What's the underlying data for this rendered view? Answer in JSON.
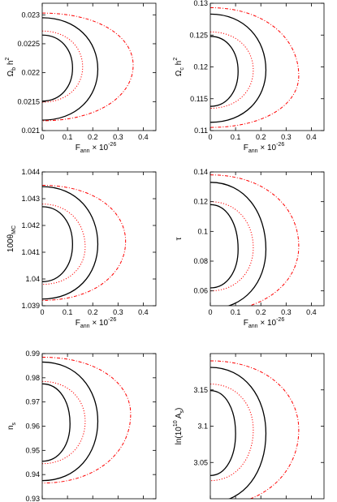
{
  "chart_data": [
    {
      "type": "contour",
      "ylabel": "Ω_b h^2",
      "ylabel_parts": {
        "base": "Ω",
        "sub": "b",
        "mid": " h",
        "sup": "2"
      },
      "xlabel_parts": {
        "base": "F",
        "sub": "ann",
        "mid": " × 10",
        "sup": "-26"
      },
      "xlim": [
        0,
        0.45
      ],
      "ylim": [
        0.021,
        0.0232
      ],
      "xticks": [
        "0",
        "0.1",
        "0.2",
        "0.3",
        "0.4"
      ],
      "yticks": [
        "0.021",
        "0.0215",
        "0.022",
        "0.0225",
        "0.023"
      ],
      "series": [
        {
          "style": "solid",
          "color": "#000000",
          "y_top": 0.02265,
          "y_bot": 0.02151,
          "x_max": 0.12,
          "y_at_max": 0.02208
        },
        {
          "style": "solid",
          "color": "#000000",
          "y_top": 0.02295,
          "y_bot": 0.02118,
          "x_max": 0.22,
          "y_at_max": 0.02206
        },
        {
          "style": "dotted",
          "color": "#ff0000",
          "y_top": 0.02272,
          "y_bot": 0.02149,
          "x_max": 0.16,
          "y_at_max": 0.0221
        },
        {
          "style": "dashdot",
          "color": "#ff0000",
          "y_top": 0.02303,
          "y_bot": 0.02117,
          "x_max": 0.36,
          "y_at_max": 0.02213
        }
      ]
    },
    {
      "type": "contour",
      "ylabel": "Ω_c h^2",
      "ylabel_parts": {
        "base": "Ω",
        "sub": "c",
        "mid": " h",
        "sup": "2"
      },
      "xlabel_parts": {
        "base": "F",
        "sub": "ann",
        "mid": " × 10",
        "sup": "-26"
      },
      "xlim": [
        0,
        0.45
      ],
      "ylim": [
        0.11,
        0.13
      ],
      "xticks": [
        "0",
        "0.1",
        "0.2",
        "0.3",
        "0.4"
      ],
      "yticks": [
        "0.11",
        "0.115",
        "0.12",
        "0.125",
        "0.13"
      ],
      "series": [
        {
          "style": "solid",
          "color": "#000000",
          "y_top": 0.1248,
          "y_bot": 0.1138,
          "x_max": 0.11,
          "y_at_max": 0.1193
        },
        {
          "style": "solid",
          "color": "#000000",
          "y_top": 0.1283,
          "y_bot": 0.1113,
          "x_max": 0.22,
          "y_at_max": 0.1195
        },
        {
          "style": "dotted",
          "color": "#ff0000",
          "y_top": 0.1255,
          "y_bot": 0.1135,
          "x_max": 0.17,
          "y_at_max": 0.1195
        },
        {
          "style": "dashdot",
          "color": "#ff0000",
          "y_top": 0.1293,
          "y_bot": 0.1105,
          "x_max": 0.35,
          "y_at_max": 0.1186
        }
      ]
    },
    {
      "type": "contour",
      "ylabel": "100θ_MC",
      "ylabel_parts": {
        "base": "100θ",
        "sub": "MC",
        "mid": "",
        "sup": ""
      },
      "xlabel_parts": {
        "base": "F",
        "sub": "ann",
        "mid": " × 10",
        "sup": "-26"
      },
      "xlim": [
        0,
        0.45
      ],
      "ylim": [
        1.039,
        1.044
      ],
      "xticks": [
        "0",
        "0.1",
        "0.2",
        "0.3",
        "0.4"
      ],
      "yticks": [
        "1.039",
        "1.04",
        "1.041",
        "1.042",
        "1.043",
        "1.044"
      ],
      "series": [
        {
          "style": "solid",
          "color": "#000000",
          "y_top": 1.0427,
          "y_bot": 1.0399,
          "x_max": 0.12,
          "y_at_max": 1.0413
        },
        {
          "style": "solid",
          "color": "#000000",
          "y_top": 1.04345,
          "y_bot": 1.03925,
          "x_max": 0.22,
          "y_at_max": 1.0413
        },
        {
          "style": "dotted",
          "color": "#ff0000",
          "y_top": 1.0428,
          "y_bot": 1.0398,
          "x_max": 0.17,
          "y_at_max": 1.0412
        },
        {
          "style": "dashdot",
          "color": "#ff0000",
          "y_top": 1.0435,
          "y_bot": 1.0392,
          "x_max": 0.33,
          "y_at_max": 1.0414
        }
      ]
    },
    {
      "type": "contour",
      "ylabel": "τ",
      "ylabel_parts": {
        "base": "τ",
        "sub": "",
        "mid": "",
        "sup": ""
      },
      "xlabel_parts": {
        "base": "F",
        "sub": "ann",
        "mid": " × 10",
        "sup": "-26"
      },
      "xlim": [
        0,
        0.45
      ],
      "ylim": [
        0.05,
        0.14
      ],
      "xticks": [
        "0",
        "0.1",
        "0.2",
        "0.3",
        "0.4"
      ],
      "yticks": [
        "0.06",
        "0.08",
        "0.1",
        "0.12",
        "0.14"
      ],
      "series": [
        {
          "style": "solid",
          "color": "#000000",
          "y_top": 0.118,
          "y_bot": 0.062,
          "x_max": 0.11,
          "y_at_max": 0.088
        },
        {
          "style": "solid",
          "color": "#000000",
          "y_top": 0.133,
          "y_bot": 0.048,
          "x_max": 0.22,
          "y_at_max": 0.088
        },
        {
          "style": "dotted",
          "color": "#ff0000",
          "y_top": 0.12,
          "y_bot": 0.06,
          "x_max": 0.17,
          "y_at_max": 0.089
        },
        {
          "style": "dashdot",
          "color": "#ff0000",
          "y_top": 0.138,
          "y_bot": 0.046,
          "x_max": 0.35,
          "y_at_max": 0.09
        }
      ]
    },
    {
      "type": "contour",
      "ylabel": "n_s",
      "ylabel_parts": {
        "base": "n",
        "sub": "s",
        "mid": "",
        "sup": ""
      },
      "xlabel_parts": {
        "base": "F",
        "sub": "ann",
        "mid": " × 10",
        "sup": "-26"
      },
      "xlim": [
        0,
        0.45
      ],
      "ylim": [
        0.93,
        0.99
      ],
      "xticks": [
        "0",
        "0.1",
        "0.2",
        "0.3",
        "0.4"
      ],
      "yticks": [
        "0.93",
        "0.94",
        "0.95",
        "0.96",
        "0.97",
        "0.98",
        "0.99"
      ],
      "series": [
        {
          "style": "solid",
          "color": "#000000",
          "y_top": 0.9775,
          "y_bot": 0.9455,
          "x_max": 0.11,
          "y_at_max": 0.961
        },
        {
          "style": "solid",
          "color": "#000000",
          "y_top": 0.9865,
          "y_bot": 0.9375,
          "x_max": 0.22,
          "y_at_max": 0.962
        },
        {
          "style": "dotted",
          "color": "#ff0000",
          "y_top": 0.9785,
          "y_bot": 0.9445,
          "x_max": 0.17,
          "y_at_max": 0.962
        },
        {
          "style": "dashdot",
          "color": "#ff0000",
          "y_top": 0.9885,
          "y_bot": 0.9365,
          "x_max": 0.35,
          "y_at_max": 0.965
        }
      ]
    },
    {
      "type": "contour",
      "ylabel": "ln(10^10 A_s)",
      "ylabel_parts": {
        "base": "ln(10",
        "sub": "",
        "mid": "",
        "sup": "10",
        "tail": " A",
        "tail_sub": "s",
        "end": ")"
      },
      "xlabel_parts": {
        "base": "F",
        "sub": "ann",
        "mid": " × 10",
        "sup": "-26"
      },
      "xlim": [
        0,
        0.45
      ],
      "ylim": [
        3.0,
        3.2
      ],
      "xticks": [
        "0",
        "0.1",
        "0.2",
        "0.3",
        "0.4"
      ],
      "yticks": [
        "3.05",
        "3.1",
        "3.15"
      ],
      "series": [
        {
          "style": "solid",
          "color": "#000000",
          "y_top": 3.149,
          "y_bot": 3.032,
          "x_max": 0.1,
          "y_at_max": 3.09
        },
        {
          "style": "solid",
          "color": "#000000",
          "y_top": 3.181,
          "y_bot": 2.995,
          "x_max": 0.22,
          "y_at_max": 3.09
        },
        {
          "style": "dotted",
          "color": "#ff0000",
          "y_top": 3.158,
          "y_bot": 3.025,
          "x_max": 0.17,
          "y_at_max": 3.095
        },
        {
          "style": "dashdot",
          "color": "#ff0000",
          "y_top": 3.19,
          "y_bot": 2.99,
          "x_max": 0.35,
          "y_at_max": 3.095
        }
      ]
    }
  ]
}
